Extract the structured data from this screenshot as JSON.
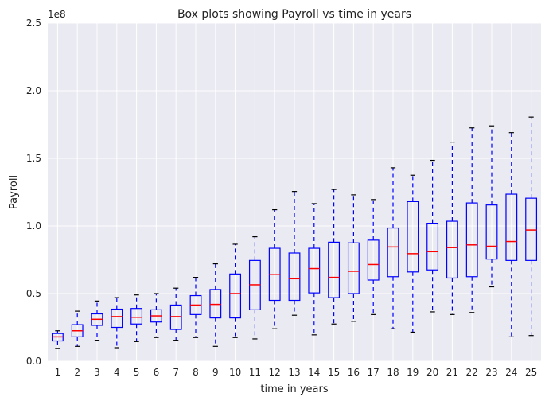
{
  "chart_data": {
    "type": "box",
    "title": "Box plots showing Payroll vs time in years",
    "xlabel": "time in years",
    "ylabel": "Payroll",
    "y_multiplier_label": "1e8",
    "ylim": [
      0,
      250000000
    ],
    "yticks": [
      {
        "value": 0,
        "label": "0.0"
      },
      {
        "value": 50000000,
        "label": "0.5"
      },
      {
        "value": 100000000,
        "label": "1.0"
      },
      {
        "value": 150000000,
        "label": "1.5"
      },
      {
        "value": 200000000,
        "label": "2.0"
      },
      {
        "value": 250000000,
        "label": "2.5"
      }
    ],
    "grid": true,
    "colors": {
      "background": "#eaeaf2",
      "grid": "#ffffff",
      "box": "#0000ff",
      "median": "#ff0000",
      "cap": "#000000"
    },
    "categories": [
      "1",
      "2",
      "3",
      "4",
      "5",
      "6",
      "7",
      "8",
      "9",
      "10",
      "11",
      "12",
      "13",
      "14",
      "15",
      "16",
      "17",
      "18",
      "19",
      "20",
      "21",
      "22",
      "23",
      "24",
      "25"
    ],
    "boxes": [
      {
        "whislo": 9500000,
        "q1": 15000000,
        "med": 18000000,
        "q3": 20500000,
        "whishi": 22500000
      },
      {
        "whislo": 11000000,
        "q1": 18000000,
        "med": 22500000,
        "q3": 27000000,
        "whishi": 37000000
      },
      {
        "whislo": 15500000,
        "q1": 26500000,
        "med": 31000000,
        "q3": 35000000,
        "whishi": 44500000
      },
      {
        "whislo": 10000000,
        "q1": 25000000,
        "med": 33000000,
        "q3": 38500000,
        "whishi": 47000000
      },
      {
        "whislo": 14500000,
        "q1": 27500000,
        "med": 32500000,
        "q3": 39000000,
        "whishi": 49000000
      },
      {
        "whislo": 17500000,
        "q1": 29000000,
        "med": 33500000,
        "q3": 38000000,
        "whishi": 50000000
      },
      {
        "whislo": 15500000,
        "q1": 23500000,
        "med": 33000000,
        "q3": 41500000,
        "whishi": 54000000
      },
      {
        "whislo": 17500000,
        "q1": 34500000,
        "med": 41500000,
        "q3": 48500000,
        "whishi": 62000000
      },
      {
        "whislo": 11000000,
        "q1": 32000000,
        "med": 42000000,
        "q3": 53000000,
        "whishi": 72000000
      },
      {
        "whislo": 17500000,
        "q1": 32000000,
        "med": 50000000,
        "q3": 64500000,
        "whishi": 86500000
      },
      {
        "whislo": 16500000,
        "q1": 38000000,
        "med": 56500000,
        "q3": 74500000,
        "whishi": 92000000
      },
      {
        "whislo": 24000000,
        "q1": 45000000,
        "med": 64000000,
        "q3": 83500000,
        "whishi": 112000000
      },
      {
        "whislo": 34000000,
        "q1": 45000000,
        "med": 61000000,
        "q3": 80000000,
        "whishi": 125500000
      },
      {
        "whislo": 19500000,
        "q1": 50500000,
        "med": 68500000,
        "q3": 83500000,
        "whishi": 116500000
      },
      {
        "whislo": 27500000,
        "q1": 47000000,
        "med": 62000000,
        "q3": 88000000,
        "whishi": 127000000
      },
      {
        "whislo": 29500000,
        "q1": 50000000,
        "med": 66500000,
        "q3": 87500000,
        "whishi": 123000000
      },
      {
        "whislo": 34500000,
        "q1": 60000000,
        "med": 71500000,
        "q3": 89500000,
        "whishi": 119500000
      },
      {
        "whislo": 24000000,
        "q1": 62500000,
        "med": 84500000,
        "q3": 98500000,
        "whishi": 143000000
      },
      {
        "whislo": 21500000,
        "q1": 66000000,
        "med": 79500000,
        "q3": 118000000,
        "whishi": 137500000
      },
      {
        "whislo": 36500000,
        "q1": 67500000,
        "med": 81000000,
        "q3": 102000000,
        "whishi": 148500000
      },
      {
        "whislo": 34500000,
        "q1": 61500000,
        "med": 84000000,
        "q3": 103500000,
        "whishi": 162000000
      },
      {
        "whislo": 36000000,
        "q1": 62500000,
        "med": 86000000,
        "q3": 117000000,
        "whishi": 172500000
      },
      {
        "whislo": 55000000,
        "q1": 75500000,
        "med": 85000000,
        "q3": 115500000,
        "whishi": 174000000
      },
      {
        "whislo": 18000000,
        "q1": 74500000,
        "med": 88500000,
        "q3": 123500000,
        "whishi": 169000000
      },
      {
        "whislo": 19000000,
        "q1": 74500000,
        "med": 97000000,
        "q3": 120500000,
        "whishi": 180500000
      }
    ]
  }
}
